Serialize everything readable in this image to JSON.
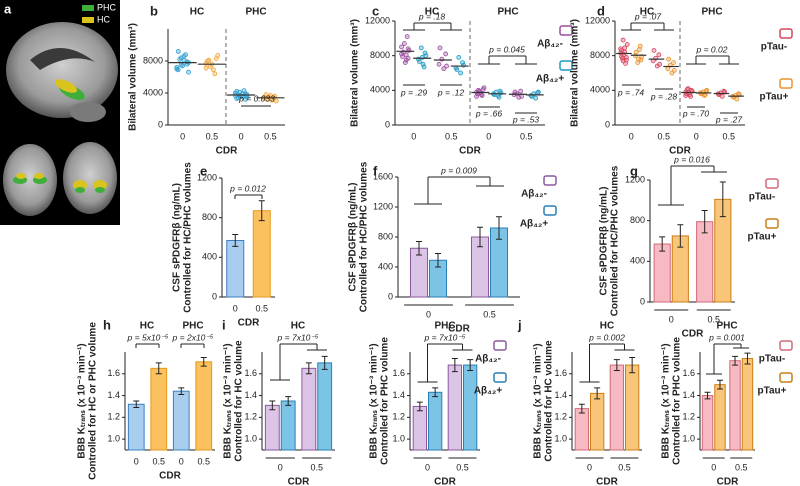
{
  "chart_data": [
    {
      "type": "image",
      "panel": "a",
      "series": [
        {
          "name": "PHC",
          "color": "#3fae3a"
        },
        {
          "name": "HC",
          "color": "#d8c41c"
        }
      ]
    },
    {
      "type": "strip",
      "panel": "b",
      "titles": [
        "HC",
        "PHC"
      ],
      "ylabel": [
        "Bilateral volume (mm³)"
      ],
      "xlabel": "CDR",
      "categories": [
        "0",
        "0.5",
        "0",
        "0.5"
      ],
      "ylim": [
        0,
        12000
      ],
      "yticks": [
        0,
        4000,
        8000
      ],
      "series": [
        {
          "color": "#2f9fd0",
          "values": [
            [
              7200,
              7600,
              8100,
              8400,
              6900,
              7800,
              8800,
              7400,
              8200,
              7000,
              7900,
              8600,
              7500,
              9200,
              6600
            ],
            null,
            [
              3700,
              3900,
              3500,
              4100,
              3300,
              3800,
              4300,
              3600,
              3400,
              4000,
              3200,
              3900,
              3700,
              4200,
              3500
            ],
            null
          ],
          "means": [
            7800,
            null,
            3750,
            null
          ]
        },
        {
          "color": "#f5a53a",
          "values": [
            null,
            [
              7700,
              8300,
              6900,
              7300,
              8000,
              8700,
              6400,
              7600,
              8100,
              7100
            ],
            null,
            [
              3300,
              3600,
              3100,
              3500,
              3800,
              3000,
              3400,
              3700,
              3200,
              3500
            ]
          ],
          "means": [
            null,
            7600,
            null,
            3400
          ]
        }
      ],
      "annotations": [
        "p = 0.033"
      ]
    },
    {
      "type": "strip",
      "panel": "c",
      "titles": [
        "HC",
        "PHC"
      ],
      "ylabel": [
        "Bilateral volume (mm³)"
      ],
      "xlabel": "CDR",
      "categories": [
        "0",
        "0.5",
        "0",
        "0.5"
      ],
      "ylim": [
        0,
        12000
      ],
      "yticks": [
        0,
        4000,
        8000,
        12000
      ],
      "series": [
        {
          "name": "Aβ₄₂-",
          "color": "#9c4fa0",
          "values": [
            [
              8200,
              8800,
              7500,
              9400,
              7900,
              8600,
              10200,
              7200,
              8400,
              9000,
              7700,
              8100
            ],
            [
              7000,
              8200,
              6500,
              7600,
              8900,
              6800
            ],
            [
              3800,
              4100,
              3500,
              3900,
              3600,
              4300,
              3400,
              3700,
              4000,
              3300
            ],
            [
              3500,
              3900,
              3200,
              3600,
              3800,
              3300
            ]
          ],
          "means": [
            8500,
            7500,
            3750,
            3550
          ]
        },
        {
          "name": "Aβ₄₂+",
          "color": "#1f9cc2",
          "values": [
            [
              7600,
              8300,
              7000,
              8900,
              7300,
              8000,
              6700,
              7800
            ],
            [
              6600,
              7200,
              6000,
              7800,
              6400,
              6900
            ],
            [
              3600,
              3900,
              3400,
              3800,
              3500,
              3700,
              3200
            ],
            [
              3400,
              3700,
              3100,
              3600,
              3300,
              3800
            ]
          ],
          "means": [
            7700,
            6800,
            3600,
            3480
          ]
        }
      ],
      "annotations": [
        "p = .18",
        "p = .29",
        "p = .12",
        "p = 0.045",
        "p = .66",
        "p = .53"
      ]
    },
    {
      "type": "strip",
      "panel": "d",
      "titles": [
        "HC",
        "PHC"
      ],
      "ylabel": [
        "Bilateral volume (mm³)"
      ],
      "xlabel": "CDR",
      "categories": [
        "0",
        "0.5",
        "0",
        "0.5"
      ],
      "ylim": [
        0,
        12000
      ],
      "yticks": [
        0,
        4000,
        8000,
        12000
      ],
      "series": [
        {
          "name": "pTau-",
          "color": "#d9455f",
          "values": [
            [
              8300,
              7800,
              8900,
              7400,
              8600,
              9300,
              7100,
              8100,
              7700,
              8800,
              7500,
              8400,
              9800,
              7900
            ],
            [
              7400,
              8100,
              6800,
              7700,
              8600,
              7000
            ],
            [
              3800,
              4000,
              3500,
              4200,
              3600,
              3900,
              3300,
              3700,
              4100,
              3400
            ],
            [
              3600,
              3900,
              3300,
              3700,
              3500,
              3800
            ]
          ],
          "means": [
            8250,
            7600,
            3750,
            3630
          ]
        },
        {
          "name": "pTau+",
          "color": "#e8922a",
          "values": [
            [
              8000,
              7500,
              8700,
              7200,
              8400,
              7900,
              9100,
              7600
            ],
            [
              6500,
              7200,
              6000,
              6900,
              7600,
              6300
            ],
            [
              3700,
              3900,
              3400,
              3800,
              3600,
              4000,
              3500
            ],
            [
              3300,
              3600,
              3000,
              3400,
              3200,
              3500
            ]
          ],
          "means": [
            8050,
            6750,
            3700,
            3330
          ]
        }
      ],
      "annotations": [
        "p = .07",
        "p = .74",
        "p = .28",
        "p = 0.02",
        "p = .70",
        "p = .27"
      ]
    },
    {
      "type": "bar",
      "panel": "e",
      "ylabel": [
        "CSF sPDGFRβ (ng/mL)",
        "Controlled for HC/PHC volumes"
      ],
      "xlabel": "CDR",
      "categories": [
        "0",
        "0.5"
      ],
      "ylim": [
        0,
        1200
      ],
      "yticks": [
        0,
        400,
        800,
        1200
      ],
      "series": [
        {
          "color": "#3b7fc0",
          "fill": "#a9cdee",
          "values": [
            570,
            null
          ],
          "errors": [
            60,
            null
          ]
        },
        {
          "color": "#e59a1c",
          "fill": "#fbc15e",
          "values": [
            null,
            870
          ],
          "errors": [
            null,
            100
          ]
        }
      ],
      "annotations": [
        "p = 0.012"
      ]
    },
    {
      "type": "bar",
      "panel": "f",
      "ylabel": [
        "CSF sPDGFRβ (ng/mL)",
        "Controlled for HC/PHC volumes"
      ],
      "xlabel": "CDR",
      "categories": [
        "0",
        "0.5"
      ],
      "ylim": [
        0,
        1600
      ],
      "yticks": [
        0,
        400,
        800,
        1200,
        1600
      ],
      "series": [
        {
          "name": "Aβ₄₂-",
          "color": "#8a5a9e",
          "fill": "#dcc4e6",
          "values": [
            650,
            800
          ],
          "errors": [
            90,
            130
          ]
        },
        {
          "name": "Aβ₄₂+",
          "color": "#2a7fb5",
          "fill": "#7cc4e6",
          "values": [
            490,
            920
          ],
          "errors": [
            90,
            150
          ]
        }
      ],
      "annotations": [
        "p = 0.009"
      ]
    },
    {
      "type": "bar",
      "panel": "g",
      "ylabel": [
        "CSF sPDGFRβ (ng/mL)",
        "Controlled for HC/PHC volumes"
      ],
      "xlabel": "CDR",
      "categories": [
        "0",
        "0.5"
      ],
      "ylim": [
        0,
        1200
      ],
      "yticks": [
        0,
        400,
        800,
        1200
      ],
      "series": [
        {
          "name": "pTau-",
          "color": "#d06a78",
          "fill": "#f7b9c2",
          "values": [
            570,
            790
          ],
          "errors": [
            70,
            110
          ]
        },
        {
          "name": "pTau+",
          "color": "#c97f18",
          "fill": "#f9c578",
          "values": [
            650,
            1010
          ],
          "errors": [
            110,
            170
          ]
        }
      ],
      "annotations": [
        "p = 0.016"
      ]
    },
    {
      "type": "bar",
      "panel": "h",
      "titles": [
        "HC",
        "PHC"
      ],
      "ylabel": [
        "BBB Kₜᵣₐₙₛ (x 10⁻³ min⁻¹)",
        "Controlled for HC or PHC volume"
      ],
      "xlabel": "CDR",
      "categories": [
        "0",
        "0.5",
        "0",
        "0.5"
      ],
      "ylim": [
        0.9,
        1.8
      ],
      "yticks": [
        {
          "value": 1,
          "label": "1.0"
        },
        1.2,
        1.4,
        1.6
      ],
      "series": [
        {
          "color": "#3b7fc0",
          "fill": "#a9cdee",
          "values": [
            1.32,
            null,
            1.44,
            null
          ],
          "errors": [
            0.03,
            null,
            0.03,
            null
          ]
        },
        {
          "color": "#e59a1c",
          "fill": "#fbc15e",
          "values": [
            null,
            1.65,
            null,
            1.71
          ],
          "errors": [
            null,
            0.05,
            null,
            0.04
          ]
        }
      ],
      "annotations": [
        "p = 5x10⁻⁵",
        "p = 2x10⁻⁵"
      ]
    },
    {
      "type": "bar",
      "panel": "i",
      "title": "HC",
      "ylabel": [
        "BBB Kₜᵣₐₙₛ (x 10⁻³ min⁻¹)",
        "Controlled for HC volume"
      ],
      "xlabel": "CDR",
      "categories": [
        "0",
        "0.5"
      ],
      "ylim": [
        0.9,
        1.8
      ],
      "yticks": [
        {
          "value": 1,
          "label": "1.0"
        },
        1.2,
        1.4,
        1.6
      ],
      "series": [
        {
          "color": "#8a5a9e",
          "fill": "#dcc4e6",
          "values": [
            1.31,
            1.65
          ],
          "errors": [
            0.04,
            0.05
          ]
        },
        {
          "color": "#2a7fb5",
          "fill": "#7cc4e6",
          "values": [
            1.35,
            1.7
          ],
          "errors": [
            0.04,
            0.06
          ]
        }
      ],
      "annotations": [
        "p = 7x10⁻⁵"
      ]
    },
    {
      "type": "bar",
      "title": "PHC",
      "ylabel": [
        "BBB Kₜᵣₐₙₛ (x 10⁻³ min⁻¹)",
        "Controlled for PHC volume"
      ],
      "xlabel": "CDR",
      "categories": [
        "0",
        "0.5"
      ],
      "ylim": [
        0.9,
        1.8
      ],
      "yticks": [
        {
          "value": 1,
          "label": "1.0"
        },
        1.2,
        1.4,
        1.6
      ],
      "series": [
        {
          "name": "Aβ₄₂-",
          "color": "#8a5a9e",
          "fill": "#dcc4e6",
          "values": [
            1.3,
            1.68
          ],
          "errors": [
            0.04,
            0.06
          ]
        },
        {
          "name": "Aβ₄₂+",
          "color": "#2a7fb5",
          "fill": "#7cc4e6",
          "values": [
            1.43,
            1.68
          ],
          "errors": [
            0.04,
            0.05
          ]
        }
      ],
      "annotations": [
        "p = 7x10⁻⁵"
      ]
    },
    {
      "type": "bar",
      "panel": "j",
      "title": "HC",
      "ylabel": [
        "BBB Kₜᵣₐₙₛ (x 10⁻³ min⁻¹)",
        "Controlled for HC volume"
      ],
      "xlabel": "CDR",
      "categories": [
        "0",
        "0.5"
      ],
      "ylim": [
        0.9,
        1.8
      ],
      "yticks": [
        {
          "value": 1,
          "label": "1.0"
        },
        1.2,
        1.4,
        1.6
      ],
      "series": [
        {
          "color": "#d06a78",
          "fill": "#f7b9c2",
          "values": [
            1.28,
            1.68
          ],
          "errors": [
            0.04,
            0.05
          ]
        },
        {
          "color": "#c97f18",
          "fill": "#f9c578",
          "values": [
            1.42,
            1.68
          ],
          "errors": [
            0.05,
            0.07
          ]
        }
      ],
      "annotations": [
        "p = 0.002"
      ]
    },
    {
      "type": "bar",
      "title": "PHC",
      "ylabel": [
        "BBB Kₜᵣₐₙₛ (x 10⁻³ min⁻¹)",
        "Controlled for PHC volume"
      ],
      "xlabel": "CDR",
      "categories": [
        "0",
        "0.5"
      ],
      "ylim": [
        0.9,
        1.8
      ],
      "yticks": [
        {
          "value": 1,
          "label": "1.0"
        },
        1.2,
        1.4,
        1.6
      ],
      "series": [
        {
          "name": "pTau-",
          "color": "#d06a78",
          "fill": "#f7b9c2",
          "values": [
            1.4,
            1.72
          ],
          "errors": [
            0.03,
            0.04
          ]
        },
        {
          "name": "pTau+",
          "color": "#c97f18",
          "fill": "#f9c578",
          "values": [
            1.5,
            1.74
          ],
          "errors": [
            0.04,
            0.05
          ]
        }
      ],
      "annotations": [
        "p = 0.001"
      ]
    }
  ]
}
